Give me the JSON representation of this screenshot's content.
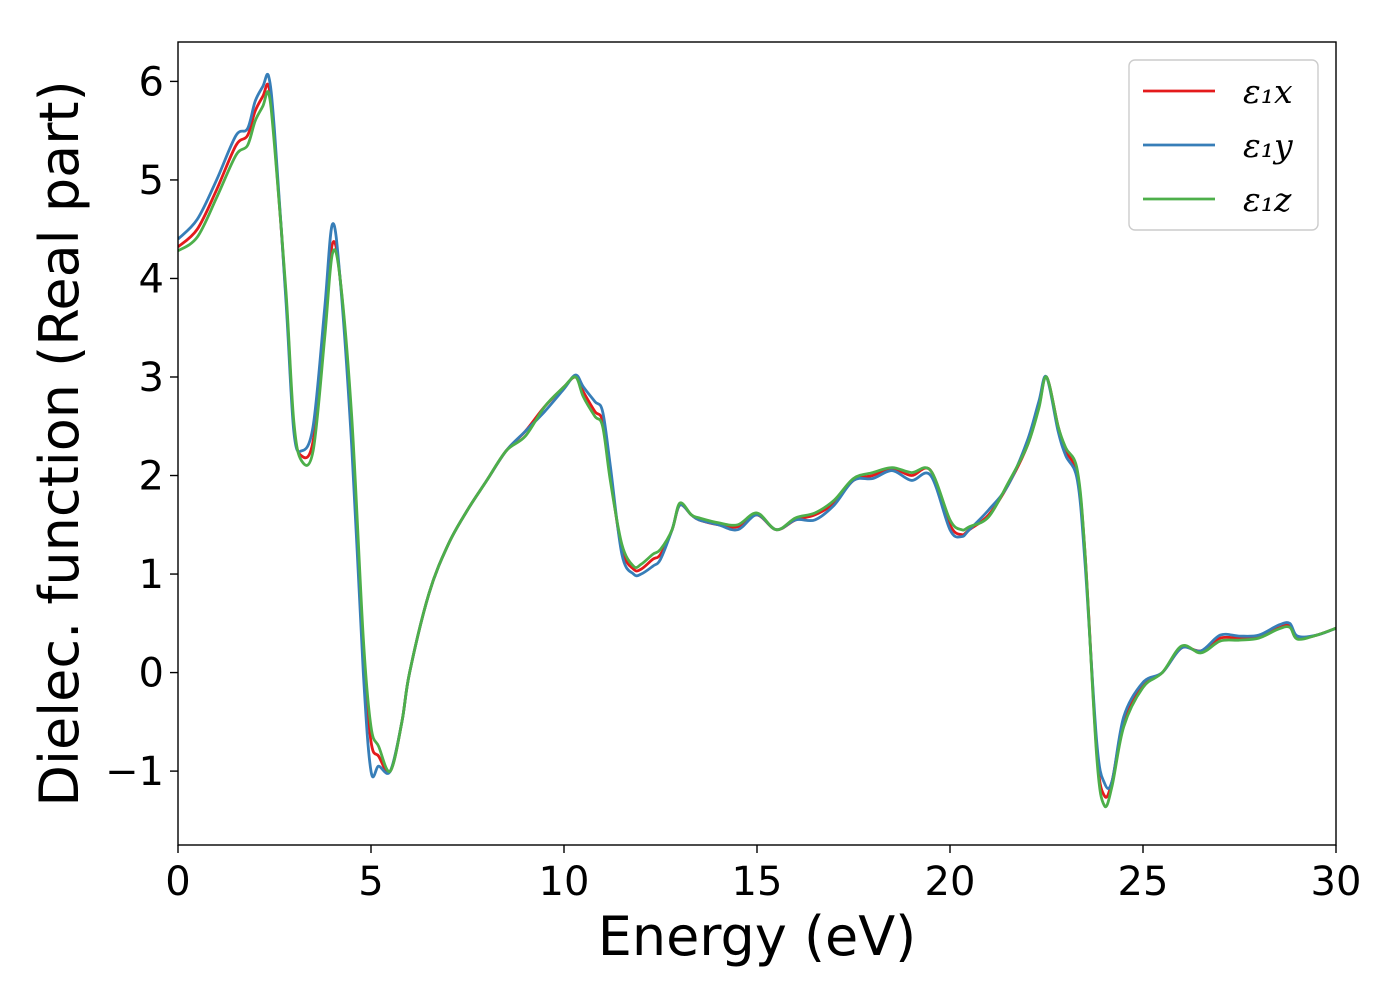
{
  "chart_data": {
    "type": "line",
    "xlabel": "Energy (eV)",
    "ylabel": "Dielec. function (Real part)",
    "xlim": [
      0,
      30
    ],
    "ylim": [
      -1.75,
      6.4
    ],
    "xticks": [
      0,
      5,
      10,
      15,
      20,
      25,
      30
    ],
    "xtick_labels": [
      "0",
      "5",
      "10",
      "15",
      "20",
      "25",
      "30"
    ],
    "yticks": [
      -1,
      0,
      1,
      2,
      3,
      4,
      5,
      6
    ],
    "ytick_labels": [
      "−1",
      "0",
      "1",
      "2",
      "3",
      "4",
      "5",
      "6"
    ],
    "grid": false,
    "legend_position": "top-right",
    "x": [
      0,
      0.5,
      1.0,
      1.5,
      1.8,
      2.0,
      2.2,
      2.35,
      2.5,
      2.8,
      3.0,
      3.2,
      3.5,
      3.8,
      4.0,
      4.2,
      4.5,
      4.8,
      5.0,
      5.2,
      5.5,
      5.8,
      6.0,
      6.5,
      7.0,
      7.5,
      8.0,
      8.5,
      9.0,
      9.5,
      10.0,
      10.3,
      10.5,
      10.8,
      11.0,
      11.2,
      11.5,
      11.8,
      12.0,
      12.3,
      12.5,
      12.8,
      13.0,
      13.3,
      13.5,
      14.0,
      14.5,
      15.0,
      15.5,
      16.0,
      16.5,
      17.0,
      17.5,
      18.0,
      18.5,
      19.0,
      19.5,
      20.0,
      20.3,
      20.5,
      21.0,
      21.5,
      22.0,
      22.3,
      22.5,
      22.8,
      23.0,
      23.3,
      23.5,
      23.8,
      24.0,
      24.2,
      24.5,
      25.0,
      25.5,
      26.0,
      26.5,
      27.0,
      27.5,
      28.0,
      28.5,
      28.8,
      29.0,
      29.5,
      30.0
    ],
    "series": [
      {
        "name": "ε₁x",
        "color": "#e41a1c",
        "values": [
          4.32,
          4.5,
          4.9,
          5.35,
          5.45,
          5.7,
          5.85,
          5.95,
          5.4,
          3.8,
          2.5,
          2.2,
          2.35,
          3.5,
          4.35,
          4.0,
          2.5,
          0.2,
          -0.7,
          -0.85,
          -1.0,
          -0.5,
          0.0,
          0.8,
          1.3,
          1.65,
          1.95,
          2.25,
          2.45,
          2.7,
          2.9,
          3.0,
          2.85,
          2.65,
          2.55,
          2.0,
          1.25,
          1.05,
          1.05,
          1.15,
          1.2,
          1.45,
          1.7,
          1.6,
          1.55,
          1.5,
          1.48,
          1.6,
          1.45,
          1.55,
          1.6,
          1.72,
          1.95,
          2.0,
          2.07,
          2.0,
          2.05,
          1.5,
          1.4,
          1.45,
          1.6,
          1.9,
          2.3,
          2.7,
          3.0,
          2.5,
          2.25,
          2.0,
          1.2,
          -0.8,
          -1.25,
          -1.1,
          -0.5,
          -0.12,
          0.0,
          0.25,
          0.22,
          0.35,
          0.35,
          0.37,
          0.45,
          0.48,
          0.35,
          0.38,
          0.45
        ]
      },
      {
        "name": "ε₁y",
        "color": "#377eb8",
        "values": [
          4.4,
          4.6,
          5.0,
          5.45,
          5.52,
          5.8,
          5.95,
          6.05,
          5.5,
          3.75,
          2.45,
          2.25,
          2.5,
          3.7,
          4.55,
          4.0,
          2.3,
          0.0,
          -1.0,
          -0.95,
          -1.0,
          -0.5,
          0.0,
          0.8,
          1.3,
          1.65,
          1.95,
          2.25,
          2.45,
          2.65,
          2.88,
          3.02,
          2.9,
          2.75,
          2.65,
          2.1,
          1.2,
          1.0,
          1.0,
          1.08,
          1.15,
          1.45,
          1.7,
          1.6,
          1.55,
          1.5,
          1.45,
          1.6,
          1.45,
          1.55,
          1.55,
          1.7,
          1.95,
          1.97,
          2.05,
          1.95,
          2.0,
          1.45,
          1.38,
          1.45,
          1.65,
          1.9,
          2.35,
          2.75,
          3.0,
          2.45,
          2.2,
          1.95,
          1.1,
          -0.7,
          -1.12,
          -1.1,
          -0.45,
          -0.1,
          0.0,
          0.25,
          0.22,
          0.38,
          0.37,
          0.38,
          0.48,
          0.5,
          0.37,
          0.38,
          0.45
        ]
      },
      {
        "name": "ε₁z",
        "color": "#4daf4a",
        "values": [
          4.28,
          4.42,
          4.82,
          5.25,
          5.35,
          5.6,
          5.75,
          5.88,
          5.35,
          3.85,
          2.55,
          2.15,
          2.25,
          3.4,
          4.25,
          4.0,
          2.6,
          0.35,
          -0.55,
          -0.75,
          -1.0,
          -0.5,
          0.0,
          0.8,
          1.3,
          1.65,
          1.95,
          2.25,
          2.4,
          2.7,
          2.9,
          3.0,
          2.8,
          2.6,
          2.5,
          1.95,
          1.3,
          1.08,
          1.1,
          1.2,
          1.25,
          1.45,
          1.72,
          1.6,
          1.57,
          1.52,
          1.5,
          1.62,
          1.45,
          1.57,
          1.62,
          1.75,
          1.97,
          2.03,
          2.08,
          2.03,
          2.05,
          1.55,
          1.45,
          1.48,
          1.58,
          1.92,
          2.3,
          2.68,
          3.0,
          2.5,
          2.28,
          2.05,
          1.2,
          -0.85,
          -1.35,
          -1.15,
          -0.55,
          -0.15,
          0.0,
          0.27,
          0.2,
          0.32,
          0.33,
          0.35,
          0.44,
          0.46,
          0.34,
          0.38,
          0.45
        ]
      }
    ]
  }
}
